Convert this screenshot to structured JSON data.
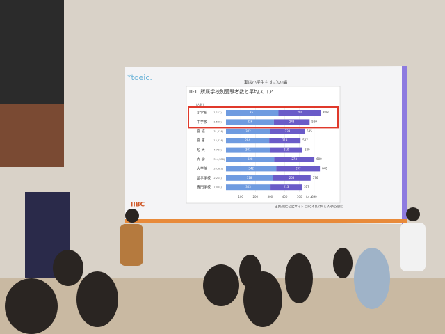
{
  "slide": {
    "logo": "*toeic.",
    "header": "実は小学生もすごい!編",
    "brand": "IIBC",
    "source": "出典:IIBC公式サイト (2024 DATA & ANALYSIS)"
  },
  "chart_data": {
    "type": "bar",
    "orientation": "horizontal",
    "stacked": true,
    "title": "Ⅲ-1. 所属学校別受験者数と平均スコア",
    "y_label": "(人数)",
    "x_label": "(スコア)",
    "categories": [
      "小学校",
      "中学校",
      "高 校",
      "高 専",
      "短 大",
      "大 学",
      "大学院",
      "語学学校",
      "専門学校"
    ],
    "counts": [
      "(1,117)",
      "(1,569)",
      "(31,214)",
      "(15,614)",
      "(4,787)",
      "(314,388)",
      "(20,383)",
      "(2,214)",
      "(7,554)"
    ],
    "series": [
      {
        "color": "#6f9be0",
        "values": [
          357,
          326,
          302,
          294,
          301,
          328,
          342,
          318,
          303
        ]
      },
      {
        "color": "#6a5bc8",
        "values": [
          291,
          243,
          233,
          213,
          219,
          273,
          297,
          258,
          213
        ]
      }
    ],
    "totals": [
      648,
      569,
      535,
      507,
      520,
      600,
      640,
      576,
      517
    ],
    "xlim": [
      0,
      700
    ],
    "xticks": [
      100,
      200,
      300,
      400,
      500,
      600
    ],
    "highlight_color": "#e0392b"
  }
}
